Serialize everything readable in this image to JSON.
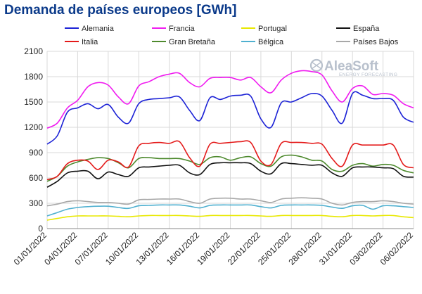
{
  "chart_data": {
    "type": "line",
    "title": "Demanda de países europeos [GWh]",
    "xlabel": "",
    "ylabel": "",
    "ylim": [
      0,
      2100
    ],
    "yticks": [
      0,
      300,
      600,
      900,
      1200,
      1500,
      1800,
      2100
    ],
    "x": [
      "01/01/2022",
      "02/01/2022",
      "03/01/2022",
      "04/01/2022",
      "05/01/2022",
      "06/01/2022",
      "07/01/2022",
      "08/01/2022",
      "09/01/2022",
      "10/01/2022",
      "11/01/2022",
      "12/01/2022",
      "13/01/2022",
      "14/01/2022",
      "15/01/2022",
      "16/01/2022",
      "17/01/2022",
      "18/01/2022",
      "19/01/2022",
      "20/01/2022",
      "21/01/2022",
      "22/01/2022",
      "23/01/2022",
      "24/01/2022",
      "25/01/2022",
      "26/01/2022",
      "27/01/2022",
      "28/01/2022",
      "29/01/2022",
      "30/01/2022",
      "31/01/2022",
      "01/02/2022",
      "02/02/2022",
      "03/02/2022",
      "04/02/2022",
      "05/02/2022",
      "06/02/2022"
    ],
    "xtick_labels": [
      "01/01/2022",
      "04/01/2022",
      "07/01/2022",
      "10/01/2022",
      "13/01/2022",
      "16/01/2022",
      "19/01/2022",
      "22/01/2022",
      "25/01/2022",
      "28/01/2022",
      "31/01/2022",
      "03/02/2022",
      "06/02/2022"
    ],
    "grid": true,
    "legend_position": "top",
    "series": [
      {
        "name": "Alemania",
        "color": "#1c22d6",
        "values": [
          1000,
          1100,
          1380,
          1430,
          1480,
          1420,
          1470,
          1320,
          1250,
          1480,
          1530,
          1540,
          1550,
          1560,
          1400,
          1280,
          1550,
          1530,
          1570,
          1580,
          1570,
          1300,
          1200,
          1490,
          1500,
          1550,
          1600,
          1570,
          1400,
          1250,
          1600,
          1580,
          1540,
          1540,
          1520,
          1320,
          1260
        ]
      },
      {
        "name": "Francia",
        "color": "#f01cf0",
        "values": [
          1190,
          1250,
          1430,
          1520,
          1680,
          1730,
          1700,
          1560,
          1480,
          1690,
          1740,
          1800,
          1830,
          1840,
          1730,
          1680,
          1780,
          1790,
          1790,
          1760,
          1790,
          1680,
          1610,
          1760,
          1840,
          1870,
          1860,
          1820,
          1630,
          1500,
          1660,
          1690,
          1590,
          1600,
          1580,
          1480,
          1430
        ]
      },
      {
        "name": "Portugal",
        "color": "#e8e800",
        "values": [
          100,
          120,
          140,
          150,
          150,
          150,
          150,
          145,
          140,
          150,
          155,
          155,
          155,
          155,
          150,
          145,
          155,
          155,
          155,
          155,
          155,
          150,
          145,
          155,
          155,
          155,
          155,
          155,
          145,
          140,
          155,
          155,
          150,
          155,
          155,
          140,
          130
        ]
      },
      {
        "name": "España",
        "color": "#111111",
        "values": [
          490,
          560,
          660,
          680,
          680,
          590,
          670,
          640,
          620,
          720,
          730,
          740,
          750,
          750,
          660,
          640,
          760,
          780,
          780,
          780,
          770,
          680,
          650,
          770,
          770,
          760,
          750,
          750,
          660,
          620,
          720,
          730,
          730,
          720,
          710,
          620,
          610
        ]
      },
      {
        "name": "Italia",
        "color": "#e41a1a",
        "values": [
          580,
          620,
          770,
          810,
          800,
          700,
          810,
          790,
          730,
          980,
          1010,
          1020,
          1010,
          1030,
          840,
          740,
          1000,
          1010,
          1020,
          1030,
          1020,
          800,
          760,
          1010,
          1020,
          1020,
          1010,
          1000,
          830,
          740,
          990,
          990,
          990,
          990,
          990,
          760,
          720
        ]
      },
      {
        "name": "Gran Bretaña",
        "color": "#4e8a2e",
        "values": [
          560,
          620,
          740,
          790,
          820,
          840,
          830,
          780,
          720,
          830,
          840,
          830,
          830,
          830,
          800,
          760,
          840,
          850,
          810,
          840,
          850,
          770,
          740,
          850,
          870,
          850,
          810,
          800,
          700,
          680,
          750,
          770,
          740,
          760,
          750,
          690,
          660
        ]
      },
      {
        "name": "Bélgica",
        "color": "#4fb0d0",
        "values": [
          150,
          190,
          230,
          250,
          260,
          265,
          265,
          250,
          240,
          270,
          275,
          280,
          280,
          280,
          265,
          245,
          275,
          280,
          280,
          280,
          280,
          260,
          245,
          275,
          280,
          280,
          280,
          275,
          255,
          240,
          270,
          275,
          230,
          270,
          270,
          260,
          250
        ]
      },
      {
        "name": "Países Bajos",
        "color": "#a8a8a8",
        "values": [
          270,
          290,
          320,
          330,
          320,
          310,
          310,
          300,
          290,
          340,
          345,
          350,
          350,
          350,
          320,
          300,
          350,
          360,
          360,
          350,
          350,
          330,
          310,
          350,
          360,
          365,
          360,
          350,
          300,
          280,
          310,
          320,
          320,
          330,
          320,
          300,
          290
        ]
      }
    ],
    "watermark": {
      "main": "AleaSoft",
      "sub": "ENERGY FORECASTING"
    }
  }
}
